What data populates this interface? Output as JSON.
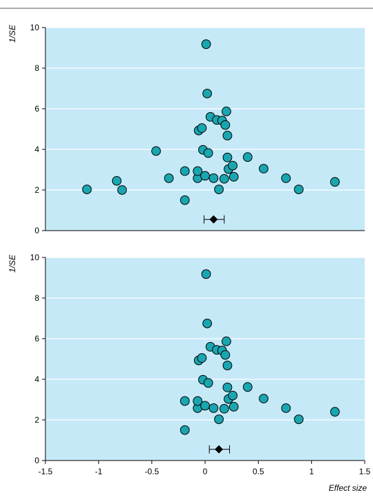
{
  "chart_data": [
    {
      "type": "scatter",
      "ylabel": "1/SE",
      "xlabel": "",
      "xlim": [
        -1.5,
        1.5
      ],
      "ylim": [
        0,
        10
      ],
      "y_ticks": [
        0,
        2,
        4,
        6,
        8,
        10
      ],
      "x_ticks": [],
      "grid": "horizontal",
      "background": "#c6e9f8",
      "point_color": "#1aa6b0",
      "points": [
        {
          "x": -1.11,
          "y": 2.03
        },
        {
          "x": -0.83,
          "y": 2.45
        },
        {
          "x": -0.78,
          "y": 2.0
        },
        {
          "x": -0.46,
          "y": 3.92
        },
        {
          "x": -0.34,
          "y": 2.58
        },
        {
          "x": -0.19,
          "y": 2.93
        },
        {
          "x": -0.19,
          "y": 1.5
        },
        {
          "x": -0.07,
          "y": 2.58
        },
        {
          "x": -0.07,
          "y": 2.93
        },
        {
          "x": -0.06,
          "y": 4.93
        },
        {
          "x": -0.03,
          "y": 5.05
        },
        {
          "x": -0.02,
          "y": 3.98
        },
        {
          "x": 0.0,
          "y": 2.7
        },
        {
          "x": 0.01,
          "y": 9.18
        },
        {
          "x": 0.02,
          "y": 6.75
        },
        {
          "x": 0.03,
          "y": 3.82
        },
        {
          "x": 0.05,
          "y": 5.6
        },
        {
          "x": 0.08,
          "y": 2.58
        },
        {
          "x": 0.11,
          "y": 5.45
        },
        {
          "x": 0.13,
          "y": 2.03
        },
        {
          "x": 0.16,
          "y": 5.42
        },
        {
          "x": 0.18,
          "y": 2.55
        },
        {
          "x": 0.19,
          "y": 5.2
        },
        {
          "x": 0.2,
          "y": 5.87
        },
        {
          "x": 0.21,
          "y": 4.68
        },
        {
          "x": 0.21,
          "y": 3.6
        },
        {
          "x": 0.22,
          "y": 3.03
        },
        {
          "x": 0.26,
          "y": 3.2
        },
        {
          "x": 0.27,
          "y": 2.65
        },
        {
          "x": 0.4,
          "y": 3.62
        },
        {
          "x": 0.55,
          "y": 3.05
        },
        {
          "x": 0.76,
          "y": 2.58
        },
        {
          "x": 0.88,
          "y": 2.03
        },
        {
          "x": 1.22,
          "y": 2.4
        }
      ],
      "summary": {
        "estimate": 0.08,
        "ci_low": -0.01,
        "ci_high": 0.18,
        "y": 0.55
      }
    },
    {
      "type": "scatter",
      "ylabel": "1/SE",
      "xlabel": "Effect size",
      "xlim": [
        -1.5,
        1.5
      ],
      "ylim": [
        0,
        10
      ],
      "y_ticks": [
        0,
        2,
        4,
        6,
        8,
        10
      ],
      "x_ticks": [
        -1.5,
        -1,
        -0.5,
        0,
        0.5,
        1,
        1.5
      ],
      "x_tick_labels": [
        "-1.5",
        "-1",
        "-0.5",
        "0",
        "0.5",
        "1",
        "1.5"
      ],
      "grid": "horizontal",
      "background": "#c6e9f8",
      "point_color": "#1aa6b0",
      "points": [
        {
          "x": -0.19,
          "y": 2.93
        },
        {
          "x": -0.19,
          "y": 1.5
        },
        {
          "x": -0.07,
          "y": 2.58
        },
        {
          "x": -0.07,
          "y": 2.93
        },
        {
          "x": -0.06,
          "y": 4.93
        },
        {
          "x": -0.03,
          "y": 5.05
        },
        {
          "x": -0.02,
          "y": 3.98
        },
        {
          "x": 0.0,
          "y": 2.7
        },
        {
          "x": 0.01,
          "y": 9.18
        },
        {
          "x": 0.02,
          "y": 6.75
        },
        {
          "x": 0.03,
          "y": 3.82
        },
        {
          "x": 0.05,
          "y": 5.6
        },
        {
          "x": 0.08,
          "y": 2.58
        },
        {
          "x": 0.11,
          "y": 5.45
        },
        {
          "x": 0.13,
          "y": 2.03
        },
        {
          "x": 0.16,
          "y": 5.42
        },
        {
          "x": 0.18,
          "y": 2.55
        },
        {
          "x": 0.19,
          "y": 5.2
        },
        {
          "x": 0.2,
          "y": 5.87
        },
        {
          "x": 0.21,
          "y": 4.68
        },
        {
          "x": 0.21,
          "y": 3.6
        },
        {
          "x": 0.22,
          "y": 3.03
        },
        {
          "x": 0.26,
          "y": 3.2
        },
        {
          "x": 0.27,
          "y": 2.65
        },
        {
          "x": 0.4,
          "y": 3.62
        },
        {
          "x": 0.55,
          "y": 3.05
        },
        {
          "x": 0.76,
          "y": 2.58
        },
        {
          "x": 0.88,
          "y": 2.03
        },
        {
          "x": 1.22,
          "y": 2.4
        }
      ],
      "summary": {
        "estimate": 0.13,
        "ci_low": 0.04,
        "ci_high": 0.23,
        "y": 0.55
      }
    }
  ]
}
